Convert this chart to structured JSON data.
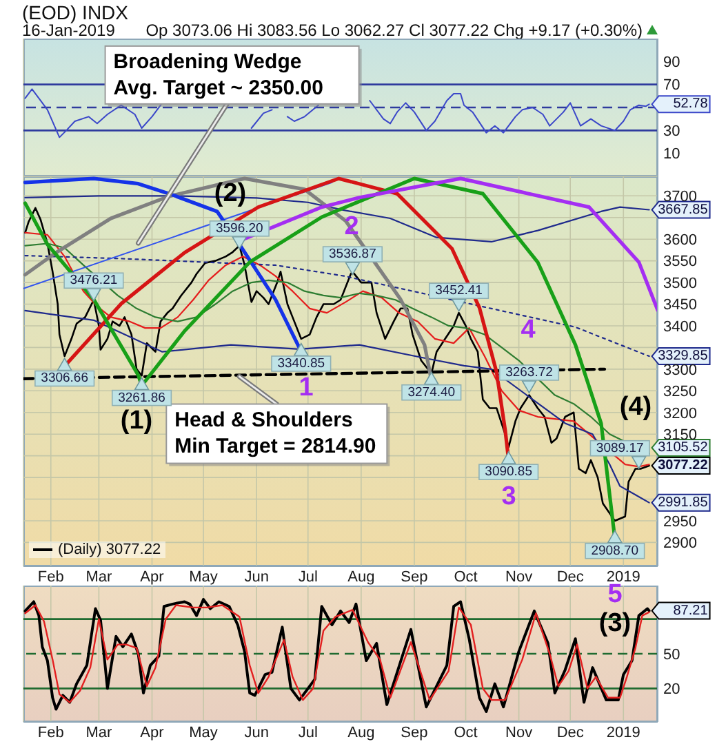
{
  "chart_data": [
    {
      "type": "line",
      "title": "(EOD) INDX",
      "subtitle": "16-Jan-2019",
      "annotations": [
        "Op 3073.06 Hi 3083.56 Lo 3062.27 Cl 3077.22 Chg +9.17 (+0.30%)"
      ],
      "xlim": [
        "2018-01-16",
        "2019-01-21"
      ],
      "xticks": [
        {
          "value": "2018-02-01",
          "label": null
        },
        {
          "value": "2018-03-01",
          "label": null
        },
        {
          "value": "2018-04-01",
          "label": null
        },
        {
          "value": "2018-05-01",
          "label": null
        },
        {
          "value": "2018-06-01",
          "label": null
        },
        {
          "value": "2018-07-01",
          "label": null
        },
        {
          "value": "2018-08-01",
          "label": null
        },
        {
          "value": "2018-09-01",
          "label": null
        },
        {
          "value": "2018-10-01",
          "label": null
        },
        {
          "value": "2018-11-01",
          "label": null
        },
        {
          "value": "2018-12-01",
          "label": null
        },
        {
          "value": "2019-01-01",
          "label": null
        }
      ],
      "ylim": [
        -10,
        110
      ],
      "yticks": [
        10,
        30,
        70,
        90
      ],
      "tick_labels": "y",
      "grid": "x",
      "ref_lines": [
        {
          "axis": "y",
          "value": 70,
          "color": "#2f3b9e"
        },
        {
          "axis": "y",
          "value": 30,
          "color": "#2f3b9e"
        },
        {
          "axis": "y",
          "value": 50,
          "color": "#2f3b9e",
          "line_style": "dashed"
        }
      ],
      "series": [
        {
          "color": "#3b47c9",
          "x": [
            "2018-01-17",
            "2018-01-21",
            "2018-01-25",
            "2018-01-30",
            "2018-02-06",
            "2018-02-10",
            "2018-02-15",
            "2018-02-23",
            "2018-02-28",
            "2018-03-06",
            "2018-03-14",
            "2018-03-22",
            "2018-03-26",
            "2018-04-01",
            "2018-04-07",
            "2018-04-13",
            "2018-04-23",
            "2018-05-03",
            "2018-05-14",
            "2018-05-24",
            "2018-05-29",
            "2018-06-05",
            "2018-06-10",
            "2018-06-15",
            "2018-06-19",
            "2018-06-23",
            "2018-06-29",
            "2018-07-07",
            "2018-07-15",
            "2018-07-25",
            "2018-08-06",
            "2018-08-14",
            "2018-08-18",
            "2018-08-22",
            "2018-08-27",
            "2018-09-01",
            "2018-09-08",
            "2018-09-13",
            "2018-09-20",
            "2018-09-24",
            "2018-09-28",
            "2018-09-30",
            "2018-10-05",
            "2018-10-13",
            "2018-10-18",
            "2018-10-23",
            "2018-10-30",
            "2018-11-03",
            "2018-11-09",
            "2018-11-15",
            "2018-11-19",
            "2018-11-27",
            "2018-12-01",
            "2018-12-07",
            "2018-12-13",
            "2018-12-19",
            "2018-12-27",
            "2019-01-01",
            "2019-01-05",
            "2019-01-10",
            "2019-01-14",
            "2019-01-16"
          ],
          "values": [
            58,
            66,
            58,
            48,
            24,
            30,
            38,
            42,
            36,
            44,
            52,
            44,
            32,
            42,
            54,
            null,
            null,
            null,
            null,
            null,
            32,
            45,
            48,
            null,
            42,
            38,
            42,
            52,
            null,
            null,
            56,
            40,
            36,
            46,
            54,
            46,
            30,
            38,
            56,
            62,
            62,
            52,
            46,
            28,
            34,
            28,
            42,
            48,
            50,
            44,
            34,
            46,
            54,
            34,
            40,
            34,
            30,
            38,
            48,
            52,
            51,
            52.78
          ],
          "value_labels": [
            null,
            null,
            null,
            null,
            null,
            null,
            null,
            null,
            null,
            null,
            null,
            null,
            null,
            null,
            null,
            null,
            null,
            null,
            null,
            null,
            null,
            null,
            null,
            null,
            null,
            null,
            null,
            null,
            null,
            null,
            null,
            null,
            null,
            null,
            null,
            null,
            null,
            null,
            null,
            null,
            null,
            null,
            null,
            null,
            null,
            null,
            null,
            null,
            null,
            null,
            null,
            null,
            null,
            null,
            null,
            null,
            null,
            null,
            null,
            null,
            null,
            "52.78"
          ]
        }
      ]
    },
    {
      "type": "line",
      "legend": "bottom left",
      "xlim": [
        "2018-01-16",
        "2019-01-21"
      ],
      "xticks": [
        {
          "value": "2018-02-01",
          "label": "Feb"
        },
        {
          "value": "2018-03-01",
          "label": "Mar"
        },
        {
          "value": "2018-04-01",
          "label": "Apr"
        },
        {
          "value": "2018-05-01",
          "label": "May"
        },
        {
          "value": "2018-06-01",
          "label": "Jun"
        },
        {
          "value": "2018-07-01",
          "label": "Jul"
        },
        {
          "value": "2018-08-01",
          "label": "Aug"
        },
        {
          "value": "2018-09-01",
          "label": "Sep"
        },
        {
          "value": "2018-10-01",
          "label": "Oct"
        },
        {
          "value": "2018-11-01",
          "label": "Nov"
        },
        {
          "value": "2018-12-01",
          "label": "Dec"
        },
        {
          "value": "2019-01-01",
          "label": "2019"
        }
      ],
      "ylim": [
        2845,
        3745
      ],
      "yticks": [
        2900,
        2950,
        {
          "value": 3000,
          "label": null
        },
        {
          "value": 3050,
          "label": null
        },
        {
          "value": 3100,
          "label": null
        },
        3150,
        3200,
        3250,
        3300,
        {
          "value": 3350,
          "label": null
        },
        3400,
        3450,
        3500,
        3550,
        3600,
        {
          "value": 3650,
          "label": null
        },
        3700
      ],
      "grid": true,
      "annotations": [
        {
          "text": "Broadening Wedge\nAvg. Target ~ 2350.00",
          "x": "2018-03-24",
          "y": 3591
        },
        {
          "text": "Head & Shoulders\nMin Target = 2814.90",
          "x": "2018-05-22",
          "y": 3283
        },
        "(1)",
        "(2)",
        "(4)",
        "1",
        "2",
        "3",
        "4"
      ],
      "series": [
        {
          "name": "(Daily) 3077.22",
          "color": "#000000",
          "x": [
            "2018-01-17",
            "2018-01-19",
            "2018-01-23",
            "2018-01-26",
            "2018-01-30",
            "2018-02-02",
            "2018-02-05",
            "2018-02-06",
            "2018-02-09",
            "2018-02-13",
            "2018-02-16",
            "2018-02-21",
            "2018-02-26",
            "2018-03-01",
            "2018-03-02",
            "2018-03-06",
            "2018-03-09",
            "2018-03-13",
            "2018-03-16",
            "2018-03-20",
            "2018-03-23",
            "2018-03-26",
            "2018-03-29",
            "2018-04-03",
            "2018-04-06",
            "2018-04-10",
            "2018-04-13",
            "2018-04-18",
            "2018-04-24",
            "2018-04-27",
            "2018-05-02",
            "2018-05-08",
            "2018-05-14",
            "2018-05-18",
            "2018-05-22",
            "2018-05-25",
            "2018-05-29",
            "2018-06-01",
            "2018-06-05",
            "2018-06-08",
            "2018-06-13",
            "2018-06-15",
            "2018-06-19",
            "2018-06-22",
            "2018-06-27",
            "2018-07-02",
            "2018-07-06",
            "2018-07-10",
            "2018-07-16",
            "2018-07-20",
            "2018-07-26",
            "2018-07-27",
            "2018-08-01",
            "2018-08-07",
            "2018-08-10",
            "2018-08-15",
            "2018-08-20",
            "2018-08-24",
            "2018-08-28",
            "2018-08-31",
            "2018-09-05",
            "2018-09-11",
            "2018-09-14",
            "2018-09-19",
            "2018-09-24",
            "2018-09-27",
            "2018-10-01",
            "2018-10-04",
            "2018-10-08",
            "2018-10-11",
            "2018-10-15",
            "2018-10-19",
            "2018-10-24",
            "2018-10-26",
            "2018-10-30",
            "2018-11-02",
            "2018-11-07",
            "2018-11-12",
            "2018-11-16",
            "2018-11-20",
            "2018-11-23",
            "2018-11-28",
            "2018-12-03",
            "2018-12-06",
            "2018-12-10",
            "2018-12-13",
            "2018-12-17",
            "2018-12-20",
            "2018-12-27",
            "2019-01-02",
            "2019-01-04",
            "2019-01-08",
            "2019-01-11",
            "2019-01-16"
          ],
          "values": [
            3615,
            3640,
            3672,
            3645,
            3590,
            3525,
            3450,
            3380,
            3330,
            3370,
            3405,
            3420,
            3460,
            3400,
            3345,
            3370,
            3410,
            3400,
            3420,
            3380,
            3300,
            3285,
            3360,
            3340,
            3410,
            3430,
            3440,
            3470,
            3500,
            3520,
            3545,
            3550,
            3560,
            3570,
            3585,
            3540,
            3455,
            3480,
            3465,
            3450,
            3500,
            3525,
            3450,
            3420,
            3370,
            3380,
            3420,
            3450,
            3450,
            3460,
            3520,
            3525,
            3500,
            3500,
            3430,
            3370,
            3410,
            3440,
            3440,
            3380,
            3320,
            3290,
            3340,
            3370,
            3400,
            3430,
            3400,
            3370,
            3340,
            3230,
            3210,
            3210,
            3150,
            3120,
            3180,
            3210,
            3240,
            3210,
            3190,
            3130,
            3140,
            3190,
            3200,
            3070,
            3060,
            3090,
            3050,
            2990,
            2950,
            2960,
            3040,
            3070,
            3070,
            3077.22
          ],
          "value_labels": [
            null,
            null,
            null,
            null,
            null,
            null,
            null,
            null,
            null,
            null,
            null,
            null,
            null,
            null,
            null,
            null,
            null,
            null,
            null,
            null,
            null,
            null,
            null,
            null,
            null,
            null,
            null,
            null,
            null,
            null,
            null,
            null,
            null,
            null,
            null,
            null,
            null,
            null,
            null,
            null,
            null,
            null,
            null,
            null,
            null,
            null,
            null,
            null,
            null,
            null,
            null,
            null,
            null,
            null,
            null,
            null,
            null,
            null,
            null,
            null,
            null,
            null,
            null,
            null,
            null,
            null,
            null,
            null,
            null,
            null,
            null,
            null,
            null,
            null,
            null,
            null,
            null,
            null,
            null,
            null,
            null,
            null,
            null,
            null,
            null,
            null,
            null,
            null,
            null,
            null,
            null,
            null,
            null,
            "3077.22"
          ]
        },
        {
          "color": "#e51c1c",
          "x": [
            "2018-01-17",
            "2018-01-30",
            "2018-02-09",
            "2018-02-20",
            "2018-02-28",
            "2018-03-08",
            "2018-03-19",
            "2018-03-28",
            "2018-04-06",
            "2018-04-16",
            "2018-04-25",
            "2018-05-04",
            "2018-05-14",
            "2018-05-24",
            "2018-06-03",
            "2018-06-12",
            "2018-06-22",
            "2018-07-02",
            "2018-07-12",
            "2018-07-23",
            "2018-08-02",
            "2018-08-13",
            "2018-08-23",
            "2018-09-03",
            "2018-09-13",
            "2018-09-24",
            "2018-10-03",
            "2018-10-12",
            "2018-10-22",
            "2018-11-01",
            "2018-11-12",
            "2018-11-22",
            "2018-12-03",
            "2018-12-12",
            "2019-01-02",
            "2019-01-10",
            "2019-01-16"
          ],
          "values": [
            3615,
            3610,
            3560,
            3480,
            3445,
            3420,
            3410,
            3395,
            3395,
            3420,
            3460,
            3505,
            3540,
            3560,
            3540,
            3515,
            3480,
            3440,
            3430,
            3455,
            3480,
            3465,
            3430,
            3410,
            3370,
            3360,
            3395,
            3330,
            3250,
            3205,
            3190,
            3185,
            3180,
            3150,
            3080,
            3075,
            3080
          ]
        },
        {
          "color": "#2e7d32",
          "x": [
            "2018-01-17",
            "2018-01-30",
            "2018-02-09",
            "2018-02-20",
            "2018-03-12",
            "2018-03-23",
            "2018-04-03",
            "2018-04-16",
            "2018-04-27",
            "2018-05-08",
            "2018-05-18",
            "2018-05-29",
            "2018-06-08",
            "2018-06-19",
            "2018-06-29",
            "2018-07-10",
            "2018-07-20",
            "2018-07-31",
            "2018-08-10",
            "2018-08-21",
            "2018-08-31",
            "2018-09-11",
            "2018-09-21",
            "2018-10-01",
            "2018-10-12",
            "2018-10-22",
            "2018-11-01",
            "2018-11-22",
            "2018-12-03",
            "2018-12-13",
            "2018-12-24",
            "2019-01-16"
          ],
          "values": [
            3585,
            3590,
            3580,
            3540,
            3470,
            3440,
            3420,
            3410,
            3420,
            3450,
            3480,
            3500,
            3505,
            3500,
            3480,
            3470,
            3465,
            3475,
            3470,
            3460,
            3440,
            3420,
            3400,
            3395,
            3380,
            3350,
            3320,
            3240,
            3220,
            3190,
            3150,
            3105.52
          ],
          "value_labels": [
            null,
            null,
            null,
            null,
            null,
            null,
            null,
            null,
            null,
            null,
            null,
            null,
            null,
            null,
            null,
            null,
            null,
            null,
            null,
            null,
            null,
            null,
            null,
            null,
            null,
            null,
            null,
            null,
            null,
            null,
            null,
            "3105.52"
          ]
        },
        {
          "color": "#1f2a8c",
          "x": [
            "2018-01-17",
            "2018-03-01",
            "2018-04-15",
            "2018-06-01",
            "2018-07-01",
            "2018-07-22",
            "2018-08-18",
            "2018-09-14",
            "2018-10-16",
            "2018-11-12",
            "2018-12-19",
            "2018-12-30",
            "2019-01-16"
          ],
          "values": [
            3696,
            3700,
            3700,
            3695,
            3685,
            3667,
            3648,
            3604,
            3594,
            3620,
            3664,
            3674,
            3667.85
          ],
          "value_labels": [
            null,
            null,
            null,
            null,
            null,
            null,
            null,
            null,
            null,
            null,
            null,
            null,
            "3667.85"
          ]
        },
        {
          "color": "#1f2a8c",
          "line_style": "dotted",
          "x": [
            "2018-01-17",
            "2018-03-15",
            "2018-06-12",
            "2018-07-22",
            "2018-12-04",
            "2019-01-16"
          ],
          "values": [
            3562,
            3555,
            3540,
            3515,
            3397,
            3329.85
          ],
          "value_labels": [
            null,
            null,
            null,
            null,
            null,
            "3329.85"
          ]
        },
        {
          "color": "#1f2a8c",
          "x": [
            "2018-01-17",
            "2018-02-26",
            "2018-04-07",
            "2018-05-17",
            "2018-06-26",
            "2018-07-31",
            "2018-09-09",
            "2018-09-30",
            "2018-10-16",
            "2018-11-28",
            "2018-12-14",
            "2018-12-24",
            "2018-12-30",
            "2019-01-08",
            "2019-01-16"
          ],
          "values": [
            3435,
            3413,
            3340,
            3356,
            3346,
            3356,
            3324,
            3308,
            3300,
            3175,
            3150,
            3080,
            3030,
            3010,
            2991.85
          ],
          "value_labels": [
            null,
            null,
            null,
            null,
            null,
            null,
            null,
            null,
            null,
            null,
            null,
            null,
            null,
            null,
            "2991.85"
          ]
        },
        {
          "color": "#3355ee",
          "x": [
            "2018-01-16",
            "2018-07-15"
          ],
          "values": [
            3486,
            3731
          ]
        },
        {
          "color": "#000000",
          "line_style": "dashed",
          "x": [
            "2018-01-16",
            "2018-12-21"
          ],
          "values": [
            3278,
            3300
          ]
        },
        {
          "color": "#808080",
          "x": [
            "2018-01-17",
            "2018-02-04",
            "2018-03-08",
            "2018-04-11",
            "2018-05-25",
            "2018-06-29",
            "2018-07-23",
            "2018-08-24",
            "2018-09-07",
            "2018-09-11"
          ],
          "values": [
            3518,
            3569,
            3648,
            3699,
            3740,
            3715,
            3642,
            3461,
            3356,
            3274
          ]
        },
        {
          "color": "#1533e8",
          "x": [
            "2018-01-17",
            "2018-02-26",
            "2018-03-24",
            "2018-04-11",
            "2018-05-09",
            "2018-05-22",
            "2018-06-12",
            "2018-06-27"
          ],
          "values": [
            3731,
            3740,
            3728,
            3705,
            3664,
            3588,
            3461,
            3341
          ]
        },
        {
          "color": "#d61515",
          "x": [
            "2018-02-09",
            "2018-03-14",
            "2018-04-20",
            "2018-06-02",
            "2018-07-19",
            "2018-08-22",
            "2018-09-23",
            "2018-10-09",
            "2018-10-19",
            "2018-10-24",
            "2018-10-26"
          ],
          "values": [
            3307,
            3451,
            3569,
            3674,
            3740,
            3705,
            3578,
            3442,
            3293,
            3160,
            3091
          ]
        },
        {
          "color": "#18a018",
          "x": [
            "2018-01-17",
            "2018-01-30",
            "2018-02-26",
            "2018-03-24",
            "2018-03-26"
          ],
          "values": [
            3683,
            3588,
            3461,
            3286,
            3262
          ]
        },
        {
          "color": "#18a018",
          "x": [
            "2018-03-26",
            "2018-04-20",
            "2018-05-28",
            "2018-07-09",
            "2018-09-01",
            "2018-10-11",
            "2018-11-12",
            "2018-12-04",
            "2018-12-19",
            "2018-12-27"
          ],
          "values": [
            3262,
            3388,
            3547,
            3651,
            3740,
            3705,
            3547,
            3356,
            3175,
            2909
          ]
        },
        {
          "color": "#a42ef2",
          "x": [
            "2018-05-22",
            "2018-07-09",
            "2018-07-31",
            "2018-09-28",
            "2018-12-12",
            "2019-01-10",
            "2019-01-21"
          ],
          "values": [
            3596,
            3674,
            3696,
            3740,
            3674,
            3547,
            3436
          ]
        },
        {
          "type": "scatter",
          "marker": "triangle",
          "color": "#bfe3e6",
          "x": [
            "2018-02-09",
            "2018-02-26",
            "2018-03-26",
            "2018-05-22",
            "2018-06-27",
            "2018-07-27",
            "2018-09-11",
            "2018-09-27",
            "2018-10-26",
            "2018-11-07",
            "2018-12-27",
            "2019-01-10"
          ],
          "values": [
            3306.66,
            3476.21,
            3261.86,
            3596.2,
            3340.85,
            3536.87,
            3274.4,
            3452.41,
            3090.85,
            3263.72,
            2908.7,
            3089.17
          ],
          "value_labels": [
            "3306.66",
            "3476.21",
            "3261.86",
            "3596.20",
            "3340.85",
            "3536.87",
            "3274.40",
            "3452.41",
            "3090.85",
            "3263.72",
            "2908.70",
            "3089.17"
          ]
        }
      ]
    },
    {
      "type": "line",
      "xlim": [
        "2018-01-16",
        "2019-01-21"
      ],
      "xticks": [
        {
          "value": "2018-02-01",
          "label": "Feb"
        },
        {
          "value": "2018-03-01",
          "label": "Mar"
        },
        {
          "value": "2018-04-01",
          "label": "Apr"
        },
        {
          "value": "2018-05-01",
          "label": "May"
        },
        {
          "value": "2018-06-01",
          "label": "Jun"
        },
        {
          "value": "2018-07-01",
          "label": "Jul"
        },
        {
          "value": "2018-08-01",
          "label": "Aug"
        },
        {
          "value": "2018-09-01",
          "label": "Sep"
        },
        {
          "value": "2018-10-01",
          "label": "Oct"
        },
        {
          "value": "2018-11-01",
          "label": "Nov"
        },
        {
          "value": "2018-12-01",
          "label": "Dec"
        },
        {
          "value": "2019-01-01",
          "label": "2019"
        }
      ],
      "ylim": [
        -9,
        109
      ],
      "yticks": [
        20,
        50,
        {
          "value": 80,
          "label": null
        }
      ],
      "grid": "x",
      "ref_lines": [
        {
          "axis": "y",
          "value": 80,
          "color": "#1f6b30"
        },
        {
          "axis": "y",
          "value": 20,
          "color": "#1f6b30"
        },
        {
          "axis": "y",
          "value": 50,
          "color": "#1f6b30",
          "line_style": "dashed"
        }
      ],
      "annotations": [
        "(3)",
        "5"
      ],
      "series": [
        {
          "color": "#000000",
          "x": [
            "2018-01-17",
            "2018-01-22",
            "2018-01-25",
            "2018-01-27",
            "2018-01-30",
            "2018-02-02",
            "2018-02-04",
            "2018-02-08",
            "2018-02-12",
            "2018-02-16",
            "2018-02-22",
            "2018-02-27",
            "2018-03-02",
            "2018-03-06",
            "2018-03-11",
            "2018-03-15",
            "2018-03-20",
            "2018-03-24",
            "2018-03-27",
            "2018-03-31",
            "2018-04-05",
            "2018-04-08",
            "2018-04-13",
            "2018-04-20",
            "2018-04-23",
            "2018-04-27",
            "2018-05-01",
            "2018-05-05",
            "2018-05-10",
            "2018-05-16",
            "2018-05-21",
            "2018-05-25",
            "2018-05-28",
            "2018-05-31",
            "2018-06-06",
            "2018-06-10",
            "2018-06-16",
            "2018-06-21",
            "2018-06-26",
            "2018-07-01",
            "2018-07-05",
            "2018-07-09",
            "2018-07-15",
            "2018-07-20",
            "2018-07-25",
            "2018-07-29",
            "2018-08-04",
            "2018-08-10",
            "2018-08-16",
            "2018-08-30",
            "2018-09-08",
            "2018-09-20",
            "2018-09-24",
            "2018-09-28",
            "2018-10-03",
            "2018-10-09",
            "2018-10-13",
            "2018-10-18",
            "2018-10-23",
            "2018-11-01",
            "2018-11-10",
            "2018-11-18",
            "2018-11-22",
            "2018-11-28",
            "2018-12-04",
            "2018-12-09",
            "2018-12-14",
            "2018-12-22",
            "2018-12-29",
            "2019-01-01",
            "2019-01-06",
            "2019-01-10",
            "2019-01-15",
            "2019-01-16"
          ],
          "values": [
            87,
            95,
            83,
            56,
            44,
            12,
            2,
            14,
            8,
            24,
            40,
            89,
            79,
            20,
            65,
            56,
            67,
            50,
            16,
            40,
            48,
            91,
            93,
            95,
            93,
            83,
            97,
            89,
            95,
            91,
            75,
            52,
            16,
            14,
            32,
            34,
            73,
            20,
            10,
            20,
            28,
            91,
            75,
            87,
            77,
            93,
            44,
            59,
            6,
            71,
            4,
            40,
            91,
            95,
            63,
            12,
            0,
            24,
            4,
            52,
            87,
            59,
            16,
            36,
            63,
            8,
            38,
            10,
            10,
            32,
            44,
            83,
            89,
            87.21
          ],
          "value_labels": [
            null,
            null,
            null,
            null,
            null,
            null,
            null,
            null,
            null,
            null,
            null,
            null,
            null,
            null,
            null,
            null,
            null,
            null,
            null,
            null,
            null,
            null,
            null,
            null,
            null,
            null,
            null,
            null,
            null,
            null,
            null,
            null,
            null,
            null,
            null,
            null,
            null,
            null,
            null,
            null,
            null,
            null,
            null,
            null,
            null,
            null,
            null,
            null,
            null,
            null,
            null,
            null,
            null,
            null,
            null,
            null,
            null,
            null,
            null,
            null,
            null,
            null,
            null,
            null,
            null,
            null,
            null,
            null,
            null,
            null,
            null,
            null,
            null,
            "87.21"
          ]
        },
        {
          "color": "#e32020",
          "x": [
            "2018-01-17",
            "2018-01-23",
            "2018-01-28",
            "2018-02-02",
            "2018-02-06",
            "2018-02-12",
            "2018-02-18",
            "2018-02-24",
            "2018-03-01",
            "2018-03-06",
            "2018-03-12",
            "2018-03-17",
            "2018-03-23",
            "2018-03-29",
            "2018-04-03",
            "2018-04-09",
            "2018-04-15",
            "2018-04-25",
            "2018-05-03",
            "2018-05-12",
            "2018-05-22",
            "2018-05-28",
            "2018-06-02",
            "2018-06-08",
            "2018-06-17",
            "2018-06-22",
            "2018-06-28",
            "2018-07-04",
            "2018-07-10",
            "2018-07-17",
            "2018-07-27",
            "2018-08-05",
            "2018-08-12",
            "2018-08-18",
            "2018-08-30",
            "2018-09-10",
            "2018-09-21",
            "2018-09-27",
            "2018-10-04",
            "2018-10-11",
            "2018-10-16",
            "2018-10-24",
            "2018-11-03",
            "2018-11-11",
            "2018-11-19",
            "2018-11-24",
            "2018-11-30",
            "2018-12-05",
            "2018-12-11",
            "2018-12-16",
            "2018-12-23",
            "2018-12-30",
            "2019-01-03",
            "2019-01-08",
            "2019-01-12",
            "2019-01-16"
          ],
          "values": [
            85,
            92,
            78,
            45,
            15,
            8,
            18,
            38,
            80,
            45,
            58,
            58,
            55,
            22,
            38,
            80,
            92,
            90,
            90,
            92,
            82,
            40,
            16,
            30,
            62,
            30,
            10,
            20,
            70,
            82,
            88,
            60,
            45,
            12,
            60,
            10,
            35,
            90,
            75,
            20,
            10,
            10,
            45,
            85,
            50,
            22,
            35,
            58,
            20,
            30,
            12,
            12,
            30,
            55,
            83,
            86
          ]
        }
      ]
    }
  ]
}
